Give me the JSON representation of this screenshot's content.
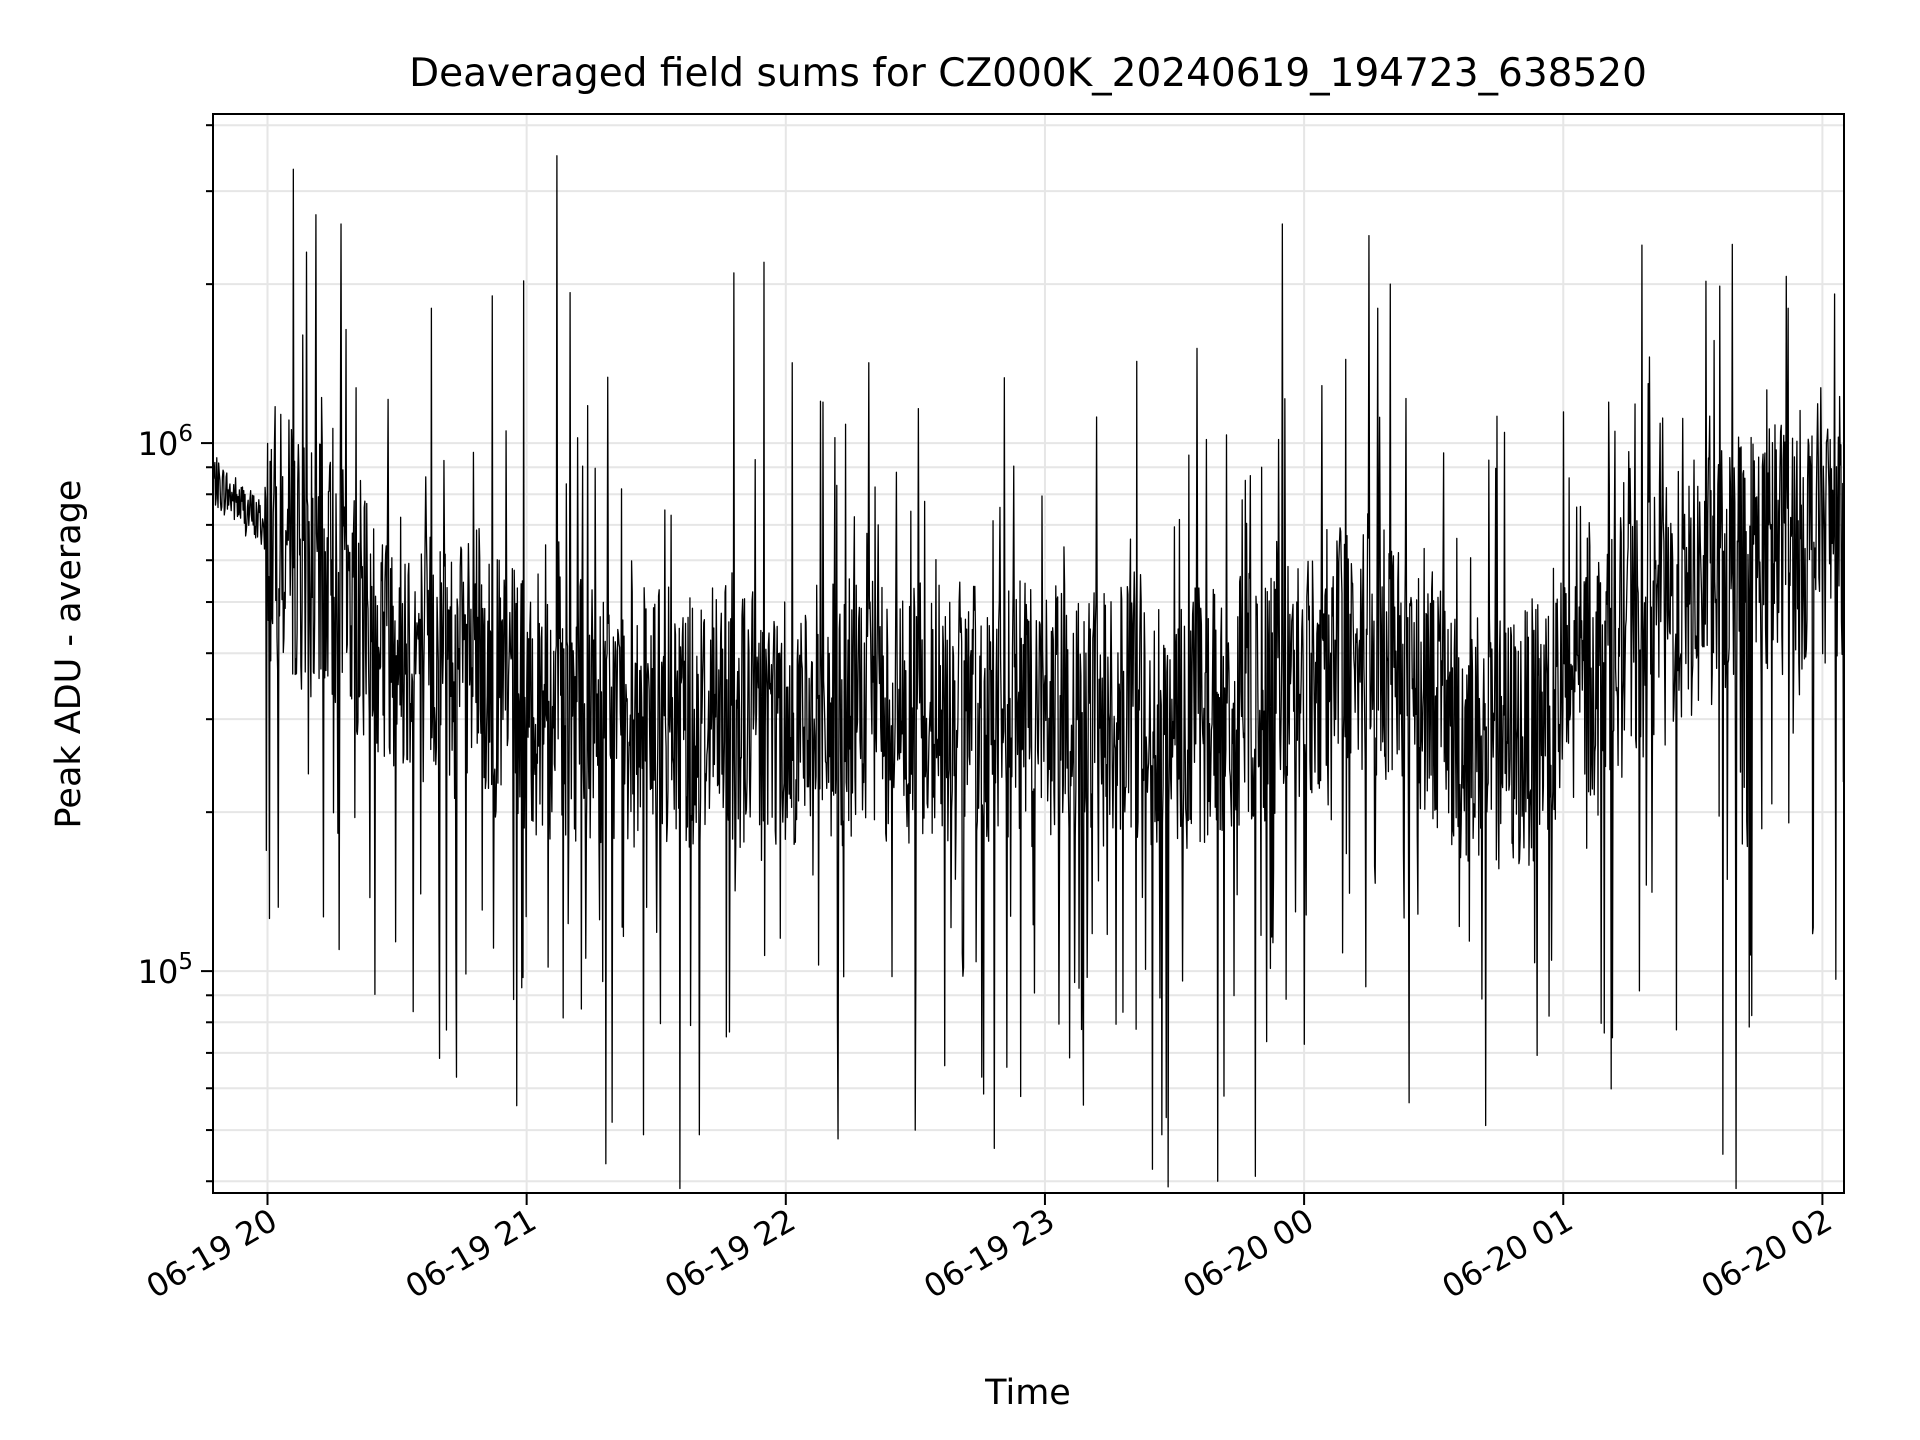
{
  "chart_data": {
    "type": "line",
    "title": "Deaveraged field sums for CZ000K_20240619_194723_638520",
    "xlabel": "Time",
    "ylabel": "Peak ADU - average",
    "x_range": [
      "2024-06-19 19:47:23",
      "2024-06-20 02:05:00"
    ],
    "x_ticks": [
      "06-19 20",
      "06-19 21",
      "06-19 22",
      "06-19 23",
      "06-20 00",
      "06-20 01",
      "06-20 02"
    ],
    "y_scale": "log",
    "y_range": [
      38000,
      4200000
    ],
    "y_major_ticks": [
      {
        "value": 100000,
        "base": "10",
        "exponent": "5"
      },
      {
        "value": 1000000,
        "base": "10",
        "exponent": "6"
      }
    ],
    "grid": true,
    "line_color": "#000000",
    "grid_color": "#e6e6e6",
    "series": [
      {
        "baseline": [
          [
            "2024-06-19 19:47:23",
            850000
          ],
          [
            "2024-06-19 20:10:00",
            580000
          ],
          [
            "2024-06-19 20:30:00",
            430000
          ],
          [
            "2024-06-19 21:00:00",
            320000
          ],
          [
            "2024-06-19 21:30:00",
            300000
          ],
          [
            "2024-06-19 22:30:00",
            310000
          ],
          [
            "2024-06-19 23:30:00",
            300000
          ],
          [
            "2024-06-19 23:55:00",
            330000
          ],
          [
            "2024-06-20 00:10:00",
            420000
          ],
          [
            "2024-06-20 00:25:00",
            400000
          ],
          [
            "2024-06-20 00:35:00",
            280000
          ],
          [
            "2024-06-20 00:50:00",
            270000
          ],
          [
            "2024-06-20 01:00:00",
            330000
          ],
          [
            "2024-06-20 01:20:00",
            460000
          ],
          [
            "2024-06-20 01:40:00",
            600000
          ],
          [
            "2024-06-20 02:05:00",
            700000
          ]
        ],
        "peaks": [
          [
            "2024-06-19 20:06:00",
            3300000
          ],
          [
            "2024-06-19 20:09:00",
            2300000
          ],
          [
            "2024-06-19 20:17:00",
            2600000
          ],
          [
            "2024-06-19 20:38:00",
            1800000
          ],
          [
            "2024-06-19 20:52:00",
            1900000
          ],
          [
            "2024-06-19 21:07:00",
            3500000
          ],
          [
            "2024-06-19 21:48:00",
            2100000
          ],
          [
            "2024-06-19 21:55:00",
            2200000
          ],
          [
            "2024-06-19 22:08:00",
            1200000
          ],
          [
            "2024-06-19 23:55:00",
            2600000
          ],
          [
            "2024-06-20 00:17:00",
            1800000
          ],
          [
            "2024-06-20 00:20:00",
            2000000
          ],
          [
            "2024-06-20 01:52:00",
            1800000
          ]
        ],
        "dips": [
          [
            "2024-06-19 21:27:00",
            49000
          ],
          [
            "2024-06-19 21:40:00",
            49000
          ],
          [
            "2024-06-19 22:30:00",
            50000
          ],
          [
            "2024-06-19 23:27:00",
            49000
          ],
          [
            "2024-06-19 23:40:00",
            40000
          ],
          [
            "2024-06-20 00:42:00",
            51000
          ],
          [
            "2024-06-20 01:37:00",
            45000
          ],
          [
            "2024-06-20 01:40:00",
            36000
          ]
        ]
      }
    ]
  }
}
